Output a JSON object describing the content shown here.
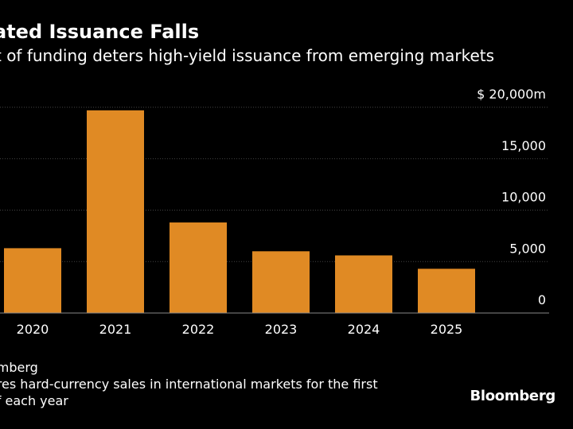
{
  "header": {
    "title": "ated Issuance Falls",
    "subtitle": "t of funding deters high-yield issuance from emerging markets"
  },
  "footer": {
    "source": "omberg",
    "note_line1": "ares hard-currency sales in international markets for the first",
    "note_line2": "of each year",
    "brand": "Bloomberg"
  },
  "colors": {
    "background": "#000000",
    "bar": "#e08a24",
    "grid": "#444444",
    "baseline": "#888888",
    "text": "#ffffff"
  },
  "chart_data": {
    "type": "bar",
    "categories": [
      "2020",
      "2021",
      "2022",
      "2023",
      "2024",
      "2025"
    ],
    "values": [
      6300,
      19700,
      8800,
      6000,
      5600,
      4300
    ],
    "ylim": [
      0,
      20000
    ],
    "yticks": [
      0,
      5000,
      10000,
      15000,
      20000
    ],
    "ytick_labels": [
      "0",
      "5,000",
      "10,000",
      "15,000",
      "$ 20,000m"
    ],
    "ylabel": "",
    "xlabel": "",
    "grid": true,
    "y_axis_side": "right"
  }
}
